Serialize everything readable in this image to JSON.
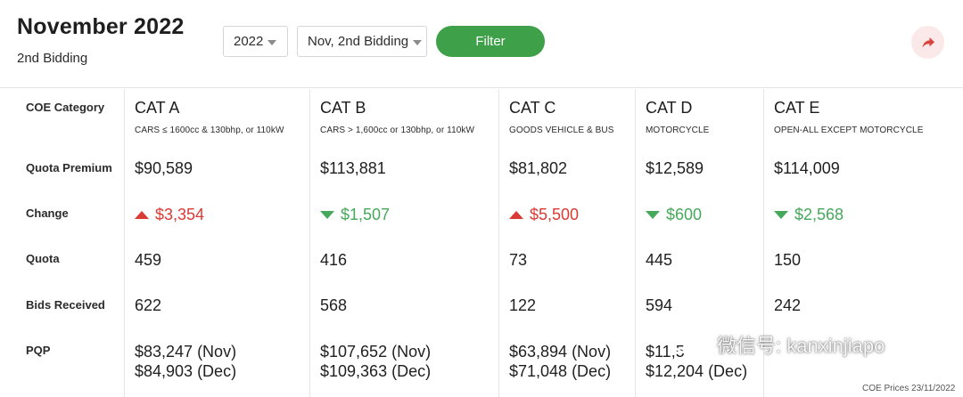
{
  "header": {
    "title": "November 2022",
    "subtitle": "2nd Bidding",
    "year_select": "2022",
    "bidding_select": "Nov, 2nd Bidding",
    "filter_label": "Filter"
  },
  "row_labels": {
    "category": "COE Category",
    "premium": "Quota Premium",
    "change": "Change",
    "quota": "Quota",
    "bids": "Bids Received",
    "pqp": "PQP"
  },
  "categories": [
    {
      "name": "CAT A",
      "desc": "CARS ≤ 1600cc & 130bhp, or 110kW",
      "premium": "$90,589",
      "change": "$3,354",
      "direction": "up",
      "quota": "459",
      "bids": "622",
      "pqp_nov": "$83,247 (Nov)",
      "pqp_dec": "$84,903 (Dec)"
    },
    {
      "name": "CAT B",
      "desc": "CARS > 1,600cc or 130bhp, or 110kW",
      "premium": "$113,881",
      "change": "$1,507",
      "direction": "down",
      "quota": "416",
      "bids": "568",
      "pqp_nov": "$107,652 (Nov)",
      "pqp_dec": "$109,363 (Dec)"
    },
    {
      "name": "CAT C",
      "desc": "GOODS VEHICLE & BUS",
      "premium": "$81,802",
      "change": "$5,500",
      "direction": "up",
      "quota": "73",
      "bids": "122",
      "pqp_nov": "$63,894 (Nov)",
      "pqp_dec": "$71,048 (Dec)"
    },
    {
      "name": "CAT D",
      "desc": "MOTORCYCLE",
      "premium": "$12,589",
      "change": "$600",
      "direction": "down",
      "quota": "445",
      "bids": "594",
      "pqp_nov": "$11,5",
      "pqp_dec": "$12,204 (Dec)"
    },
    {
      "name": "CAT E",
      "desc": "OPEN-ALL EXCEPT MOTORCYCLE",
      "premium": "$114,009",
      "change": "$2,568",
      "direction": "down",
      "quota": "150",
      "bids": "242",
      "pqp_nov": "",
      "pqp_dec": ""
    }
  ],
  "watermark": "微信号: kanxinjiapo",
  "footnote": "COE Prices 23/11/2022",
  "colors": {
    "filter": "#3ea149",
    "up": "#d93a34",
    "down": "#46a85a",
    "share_bg": "#fbe9e9",
    "share_icon": "#d9453e"
  },
  "icons": {
    "share": "share-arrow-icon",
    "up": "triangle-up-icon",
    "down": "triangle-down-icon",
    "caret": "chevron-down-icon"
  }
}
